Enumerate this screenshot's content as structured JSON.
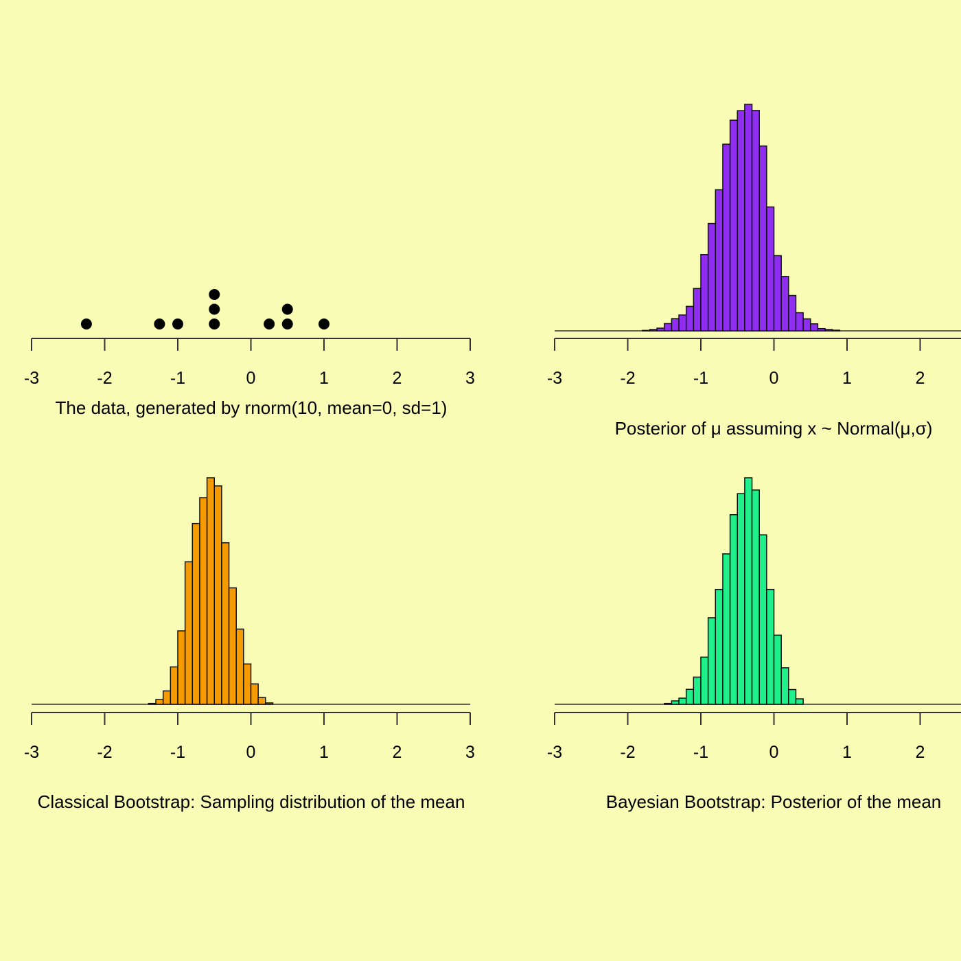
{
  "page": {
    "background": "#f8fcb4"
  },
  "chart_data": [
    {
      "id": "data-dotplot",
      "type": "scatter",
      "style": "dot-plot",
      "title": "The data, generated by rnorm(10, mean=0, sd=1)",
      "xlim": [
        -3,
        3
      ],
      "xticks": [
        "-3",
        "-2",
        "-1",
        "0",
        "1",
        "2",
        "3"
      ],
      "points": [
        {
          "x": -2.25,
          "stack": 0
        },
        {
          "x": -1.25,
          "stack": 0
        },
        {
          "x": -1.0,
          "stack": 0
        },
        {
          "x": -0.5,
          "stack": 0
        },
        {
          "x": -0.5,
          "stack": 1
        },
        {
          "x": -0.5,
          "stack": 2
        },
        {
          "x": 0.25,
          "stack": 0
        },
        {
          "x": 0.5,
          "stack": 0
        },
        {
          "x": 0.5,
          "stack": 1
        },
        {
          "x": 1.0,
          "stack": 0
        }
      ],
      "color": "#000000",
      "grid": false
    },
    {
      "id": "posterior-normal",
      "type": "bar",
      "style": "histogram",
      "title": "Posterior of μ assuming x ~ Normal(μ,σ)",
      "xlim": [
        -3,
        3
      ],
      "xticks": [
        "-3",
        "-2",
        "-1",
        "0",
        "1",
        "2",
        "3"
      ],
      "bin_start": -1.8,
      "bin_width": 0.1,
      "values": [
        0.2,
        0.6,
        1.2,
        3.2,
        5.4,
        7.0,
        10.8,
        18.7,
        33.7,
        47.4,
        62.3,
        82.4,
        93.0,
        97.2,
        100,
        97.3,
        81.6,
        54.7,
        33.2,
        24.0,
        15.6,
        8.0,
        5.3,
        3.1,
        1.0,
        0.6,
        0.3
      ],
      "color": "#8f2ef0",
      "grid": false
    },
    {
      "id": "classical-bootstrap",
      "type": "bar",
      "style": "histogram",
      "title": "Classical Bootstrap: Sampling distribution of the mean",
      "xlim": [
        -3,
        3
      ],
      "xticks": [
        "-3",
        "-2",
        "-1",
        "0",
        "1",
        "2",
        "3"
      ],
      "bin_start": -1.4,
      "bin_width": 0.1,
      "values": [
        0.4,
        2.1,
        5.9,
        16.5,
        32.4,
        62.9,
        79.8,
        91.2,
        100,
        96.4,
        71.3,
        51.4,
        33.2,
        17.8,
        9.0,
        3.0,
        0.6
      ],
      "color": "#f59b00",
      "grid": false
    },
    {
      "id": "bayesian-bootstrap",
      "type": "bar",
      "style": "histogram",
      "title": "Bayesian Bootstrap: Posterior of the mean",
      "xlim": [
        -3,
        3
      ],
      "xticks": [
        "-3",
        "-2",
        "-1",
        "0",
        "1",
        "2",
        "3"
      ],
      "bin_start": -1.5,
      "bin_width": 0.1,
      "values": [
        0.4,
        1.5,
        2.7,
        6.6,
        12.0,
        20.8,
        38.2,
        50.7,
        66.4,
        83.7,
        93.0,
        100,
        94.6,
        74.8,
        50.7,
        30.5,
        16.1,
        6.5,
        2.4
      ],
      "color": "#1ff08a",
      "grid": false
    }
  ]
}
